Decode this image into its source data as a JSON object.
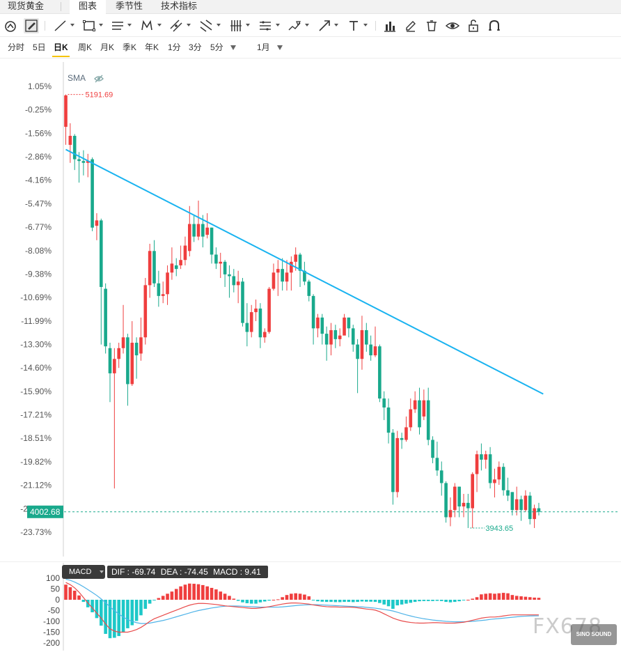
{
  "tabs": {
    "items": [
      {
        "label": "现货黄金"
      },
      {
        "label": "图表"
      },
      {
        "label": "季节性"
      },
      {
        "label": "技术指标"
      }
    ],
    "active": "图表"
  },
  "toolbar": {
    "tools": [
      "cursor-icon",
      "pencil-draw-icon",
      "trend-line-icon",
      "rectangle-icon",
      "horizontal-lines-icon",
      "pattern-icon",
      "channel-icon",
      "fib-icon",
      "vertical-lines-icon",
      "range-icon",
      "brush-icon",
      "arrow-icon",
      "text-icon",
      "bar-chart-icon",
      "pen-icon",
      "trash-icon",
      "eye-icon",
      "unlock-icon",
      "magnet-icon"
    ]
  },
  "periods": {
    "items": [
      "分时",
      "5日",
      "日K",
      "周K",
      "月K",
      "季K",
      "年K",
      "1分",
      "3分",
      "5分"
    ],
    "active": "日K",
    "interval": "1月"
  },
  "main": {
    "indicator_label": "SMA",
    "y_ticks": [
      "1.05%",
      "-0.25%",
      "-1.56%",
      "-2.86%",
      "-4.16%",
      "-5.47%",
      "-6.77%",
      "-8.08%",
      "-9.38%",
      "-10.69%",
      "-11.99%",
      "-13.30%",
      "-14.60%",
      "-15.90%",
      "-17.21%",
      "-18.51%",
      "-19.82%",
      "-21.12%",
      "-22.43%",
      "-23.73%"
    ],
    "high_label": "5191.69",
    "low_label": "3943.65",
    "current_price": "4002.68",
    "colors": {
      "up": "#ef3e3e",
      "down": "#19a98c",
      "trendline": "#19b3f0"
    }
  },
  "macd": {
    "selector": "MACD",
    "dif_label": "DIF : -69.74",
    "dea_label": "DEA : -74.45",
    "macd_label": "MACD : 9.41",
    "y_ticks": [
      "100",
      "50",
      "0",
      "-50",
      "-100",
      "-150",
      "-200"
    ]
  },
  "watermark": {
    "text": "FX678",
    "badge": "SINO SOUND"
  },
  "chart_data": {
    "type": "candlestick",
    "title": "",
    "ylim": [
      -24.5,
      2.1
    ],
    "candles": [
      [
        -1.2,
        0.55,
        0.6,
        -2.2
      ],
      [
        -2.2,
        -1.7,
        -1.0,
        -3.2
      ],
      [
        -1.7,
        -3.0,
        -1.6,
        -3.6
      ],
      [
        -3.0,
        -3.1,
        -2.6,
        -4.3
      ],
      [
        -3.1,
        -3.2,
        -2.5,
        -3.9
      ],
      [
        -3.2,
        -3.1,
        -2.7,
        -4.0
      ],
      [
        -3.0,
        -6.8,
        -2.9,
        -7.0
      ],
      [
        -6.7,
        -6.4,
        -6.0,
        -7.5
      ],
      [
        -6.4,
        -10.1,
        -6.3,
        -13.3
      ],
      [
        -10.2,
        -13.4,
        -9.9,
        -13.8
      ],
      [
        -13.5,
        -14.9,
        -13.2,
        -16.5
      ],
      [
        -14.9,
        -14.1,
        -13.5,
        -21.3
      ],
      [
        -14.1,
        -13.5,
        -13.2,
        -14.6
      ],
      [
        -13.5,
        -12.9,
        -11.1,
        -13.8
      ],
      [
        -12.9,
        -15.5,
        -12.7,
        -16.7
      ],
      [
        -15.5,
        -13.2,
        -12.0,
        -15.6
      ],
      [
        -13.2,
        -13.9,
        -12.9,
        -15.2
      ],
      [
        -13.8,
        -12.9,
        -11.8,
        -14.2
      ],
      [
        -12.9,
        -10.0,
        -9.6,
        -13.3
      ],
      [
        -10.0,
        -8.1,
        -7.7,
        -10.7
      ],
      [
        -8.1,
        -9.9,
        -7.5,
        -10.1
      ],
      [
        -9.9,
        -10.6,
        -9.2,
        -11.2
      ],
      [
        -10.6,
        -10.5,
        -9.8,
        -11.0
      ],
      [
        -10.5,
        -9.3,
        -8.9,
        -11.1
      ],
      [
        -9.3,
        -8.8,
        -7.9,
        -9.7
      ],
      [
        -8.9,
        -9.1,
        -8.5,
        -9.5
      ],
      [
        -8.9,
        -8.6,
        -7.8,
        -9.1
      ],
      [
        -8.6,
        -7.8,
        -7.3,
        -8.9
      ],
      [
        -8.1,
        -6.6,
        -5.6,
        -8.4
      ],
      [
        -6.6,
        -7.3,
        -6.1,
        -7.6
      ],
      [
        -7.3,
        -6.6,
        -5.3,
        -7.5
      ],
      [
        -6.6,
        -7.3,
        -6.1,
        -7.9
      ],
      [
        -7.2,
        -6.8,
        -6.0,
        -7.4
      ],
      [
        -6.8,
        -8.3,
        -6.8,
        -8.8
      ],
      [
        -8.3,
        -8.8,
        -7.9,
        -9.1
      ],
      [
        -8.8,
        -8.7,
        -8.2,
        -9.6
      ],
      [
        -8.7,
        -9.4,
        -8.6,
        -10.1
      ],
      [
        -9.4,
        -9.5,
        -8.9,
        -10.7
      ],
      [
        -9.5,
        -10.0,
        -9.1,
        -10.4
      ],
      [
        -10.0,
        -9.8,
        -9.2,
        -11.0
      ],
      [
        -9.8,
        -12.1,
        -9.6,
        -12.3
      ],
      [
        -12.1,
        -12.6,
        -11.0,
        -13.4
      ],
      [
        -12.6,
        -11.5,
        -11.1,
        -12.9
      ],
      [
        -11.5,
        -11.3,
        -10.8,
        -12.0
      ],
      [
        -11.3,
        -12.9,
        -11.0,
        -13.5
      ],
      [
        -12.9,
        -12.6,
        -12.4,
        -13.2
      ],
      [
        -12.6,
        -10.2,
        -10.1,
        -12.7
      ],
      [
        -10.2,
        -9.3,
        -8.8,
        -10.3
      ],
      [
        -9.3,
        -9.1,
        -8.6,
        -10.6
      ],
      [
        -9.1,
        -9.8,
        -8.5,
        -10.3
      ],
      [
        -9.8,
        -9.3,
        -8.6,
        -10.3
      ],
      [
        -9.3,
        -8.7,
        -8.4,
        -10.3
      ],
      [
        -8.7,
        -8.3,
        -7.9,
        -9.2
      ],
      [
        -8.3,
        -9.2,
        -8.2,
        -10.1
      ],
      [
        -9.2,
        -9.8,
        -8.7,
        -10.0
      ],
      [
        -9.8,
        -10.6,
        -9.7,
        -10.9
      ],
      [
        -10.6,
        -12.4,
        -10.5,
        -13.3
      ],
      [
        -12.4,
        -11.8,
        -11.6,
        -12.9
      ],
      [
        -11.8,
        -12.7,
        -11.6,
        -13.3
      ],
      [
        -12.7,
        -13.3,
        -12.3,
        -14.2
      ],
      [
        -13.3,
        -12.5,
        -12.1,
        -13.9
      ],
      [
        -12.5,
        -13.0,
        -12.2,
        -13.5
      ],
      [
        -13.0,
        -12.8,
        -12.4,
        -13.4
      ],
      [
        -12.8,
        -11.8,
        -11.6,
        -12.5
      ],
      [
        -11.8,
        -12.4,
        -11.8,
        -12.9
      ],
      [
        -12.4,
        -13.3,
        -12.2,
        -13.7
      ],
      [
        -13.3,
        -14.1,
        -13.0,
        -16.0
      ],
      [
        -14.1,
        -12.5,
        -11.7,
        -14.7
      ],
      [
        -12.5,
        -13.3,
        -12.1,
        -13.7
      ],
      [
        -13.3,
        -13.9,
        -12.8,
        -14.2
      ],
      [
        -13.9,
        -13.4,
        -12.3,
        -14.0
      ],
      [
        -13.4,
        -16.3,
        -13.3,
        -16.5
      ],
      [
        -16.3,
        -16.8,
        -15.9,
        -17.5
      ],
      [
        -16.8,
        -18.2,
        -16.3,
        -18.8
      ],
      [
        -18.2,
        -21.5,
        -18.0,
        -22.2
      ],
      [
        -21.5,
        -18.5,
        -18.1,
        -21.8
      ],
      [
        -18.5,
        -18.6,
        -18.2,
        -19.1
      ],
      [
        -18.6,
        -17.9,
        -17.3,
        -18.7
      ],
      [
        -17.9,
        -16.9,
        -16.3,
        -18.1
      ],
      [
        -16.9,
        -16.4,
        -15.9,
        -17.1
      ],
      [
        -16.4,
        -17.9,
        -15.7,
        -18.3
      ],
      [
        -17.3,
        -16.4,
        -15.8,
        -17.5
      ],
      [
        -16.4,
        -18.6,
        -15.7,
        -18.9
      ],
      [
        -18.6,
        -19.6,
        -18.4,
        -19.9
      ],
      [
        -19.6,
        -20.3,
        -18.7,
        -20.6
      ],
      [
        -20.3,
        -21.0,
        -19.8,
        -21.7
      ],
      [
        -21.0,
        -22.9,
        -20.9,
        -23.2
      ],
      [
        -22.9,
        -22.5,
        -21.8,
        -23.4
      ],
      [
        -22.5,
        -21.2,
        -21.0,
        -22.9
      ],
      [
        -21.2,
        -22.3,
        -21.2,
        -22.9
      ],
      [
        -22.3,
        -22.1,
        -21.6,
        -22.9
      ],
      [
        -22.1,
        -22.4,
        -21.6,
        -23.5
      ],
      [
        -22.4,
        -20.5,
        -20.4,
        -23.5
      ],
      [
        -20.5,
        -19.4,
        -19.2,
        -21.5
      ],
      [
        -19.4,
        -19.7,
        -18.8,
        -20.3
      ],
      [
        -19.7,
        -19.4,
        -19.2,
        -20.2
      ],
      [
        -19.4,
        -21.0,
        -19.0,
        -21.3
      ],
      [
        -21.0,
        -20.8,
        -20.2,
        -21.8
      ],
      [
        -20.8,
        -20.1,
        -19.8,
        -21.1
      ],
      [
        -20.1,
        -21.4,
        -19.9,
        -21.7
      ],
      [
        -21.4,
        -21.7,
        -20.7,
        -22.0
      ],
      [
        -21.5,
        -22.5,
        -21.5,
        -22.8
      ],
      [
        -22.5,
        -21.9,
        -21.2,
        -22.8
      ],
      [
        -21.9,
        -22.5,
        -21.7,
        -23.1
      ],
      [
        -22.5,
        -21.7,
        -21.4,
        -22.6
      ],
      [
        -21.7,
        -23.0,
        -21.5,
        -23.3
      ],
      [
        -23.0,
        -22.4,
        -22.2,
        -23.5
      ],
      [
        -22.4,
        -22.6,
        -22.1,
        -22.8
      ]
    ],
    "trendline": {
      "from": {
        "index": 0,
        "value": -2.46
      },
      "to": {
        "index": 108,
        "value": -16.05
      }
    },
    "macd": {
      "hist": [
        70,
        58,
        42,
        20,
        -10,
        -35,
        -58,
        -85,
        -120,
        -158,
        -178,
        -176,
        -168,
        -150,
        -132,
        -118,
        -98,
        -72,
        -42,
        -18,
        -2,
        8,
        18,
        28,
        38,
        50,
        62,
        70,
        75,
        74,
        72,
        68,
        62,
        55,
        48,
        38,
        28,
        18,
        5,
        -5,
        -12,
        -16,
        -18,
        -18,
        -12,
        -8,
        -4,
        0,
        2,
        12,
        22,
        28,
        30,
        28,
        24,
        16,
        -3,
        -7,
        -9,
        -10,
        -10,
        -11,
        -11,
        -10,
        -10,
        -11,
        -10,
        -8,
        -9,
        -9,
        -10,
        -15,
        -22,
        -30,
        -42,
        -26,
        -22,
        -18,
        -14,
        -10,
        -7,
        -6,
        -6,
        -6,
        -5,
        -6,
        -10,
        -12,
        -10,
        -7,
        -3,
        0,
        5,
        12,
        25,
        28,
        30,
        28,
        30,
        32,
        30,
        22,
        18,
        16,
        14,
        12,
        10,
        9
      ],
      "dif": [
        80,
        70,
        55,
        35,
        10,
        -15,
        -38,
        -62,
        -85,
        -112,
        -135,
        -145,
        -150,
        -150,
        -150,
        -145,
        -138,
        -128,
        -115,
        -100,
        -88,
        -80,
        -72,
        -64,
        -56,
        -48,
        -40,
        -32,
        -25,
        -20,
        -17,
        -17,
        -18,
        -20,
        -22,
        -25,
        -28,
        -30,
        -32,
        -34,
        -36,
        -38,
        -40,
        -40,
        -38,
        -35,
        -32,
        -28,
        -24,
        -20,
        -17,
        -15,
        -15,
        -16,
        -18,
        -20,
        -24,
        -27,
        -30,
        -32,
        -33,
        -33,
        -34,
        -34,
        -34,
        -35,
        -37,
        -40,
        -43,
        -45,
        -48,
        -55,
        -65,
        -75,
        -85,
        -92,
        -98,
        -102,
        -105,
        -107,
        -108,
        -108,
        -107,
        -106,
        -106,
        -107,
        -108,
        -108,
        -108,
        -106,
        -104,
        -100,
        -95,
        -90,
        -85,
        -82,
        -80,
        -80,
        -78,
        -75,
        -72,
        -70,
        -70,
        -70,
        -70,
        -70,
        -70,
        -70
      ],
      "dea": [
        95,
        90,
        82,
        72,
        60,
        47,
        34,
        20,
        4,
        -14,
        -33,
        -50,
        -66,
        -80,
        -92,
        -100,
        -106,
        -110,
        -110,
        -108,
        -104,
        -100,
        -96,
        -91,
        -85,
        -79,
        -73,
        -67,
        -61,
        -55,
        -50,
        -46,
        -42,
        -38,
        -35,
        -32,
        -30,
        -29,
        -29,
        -29,
        -30,
        -31,
        -32,
        -33,
        -34,
        -34,
        -34,
        -34,
        -34,
        -33,
        -31,
        -29,
        -27,
        -25,
        -24,
        -23,
        -23,
        -23,
        -24,
        -25,
        -26,
        -27,
        -28,
        -29,
        -30,
        -31,
        -32,
        -33,
        -35,
        -37,
        -39,
        -42,
        -45,
        -48,
        -52,
        -58,
        -64,
        -70,
        -75,
        -80,
        -84,
        -88,
        -91,
        -94,
        -96,
        -98,
        -100,
        -101,
        -102,
        -102,
        -102,
        -101,
        -100,
        -98,
        -96,
        -94,
        -91,
        -89,
        -87,
        -85,
        -83,
        -81,
        -79,
        -77,
        -76,
        -75,
        -74.5,
        -74.45
      ]
    }
  }
}
